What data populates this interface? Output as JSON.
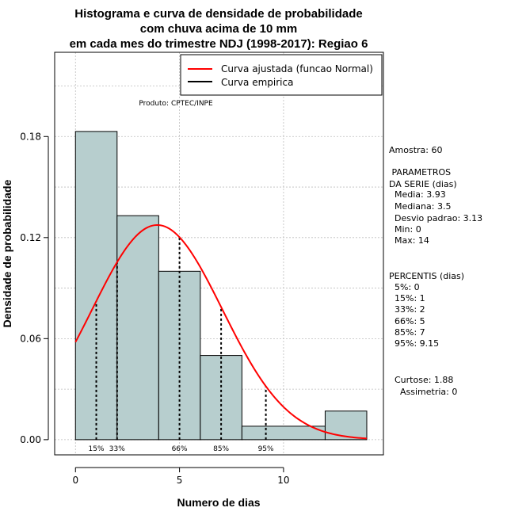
{
  "chart_data": {
    "type": "bar",
    "title_lines": [
      "Histograma e curva de densidade de probabilidade",
      "com chuva acima de 10 mm",
      "em cada mes do trimestre NDJ (1998-2017): Regiao 6"
    ],
    "xlabel": "Numero de dias",
    "ylabel": "Densidade de probabilidade",
    "xlim": [
      -1,
      14.8
    ],
    "ylim": [
      -0.009,
      0.23
    ],
    "x_ticks": [
      "0",
      "5",
      "10"
    ],
    "x_tick_values": [
      0,
      5,
      10
    ],
    "y_ticks": [
      "0.00",
      "0.06",
      "0.12",
      "0.18"
    ],
    "y_tick_values": [
      0.0,
      0.06,
      0.12,
      0.18
    ],
    "grid": true,
    "bins": [
      {
        "start": 0,
        "end": 2,
        "density": 0.183
      },
      {
        "start": 2,
        "end": 4,
        "density": 0.133
      },
      {
        "start": 4,
        "end": 6,
        "density": 0.1
      },
      {
        "start": 6,
        "end": 8,
        "density": 0.05
      },
      {
        "start": 8,
        "end": 12,
        "density": 0.008
      },
      {
        "start": 12,
        "end": 14,
        "density": 0.017
      }
    ],
    "normal_fit": {
      "mean": 3.93,
      "sd": 3.13
    },
    "percentiles": [
      {
        "label": "15%",
        "x": 1
      },
      {
        "label": "33%",
        "x": 2
      },
      {
        "label": "66%",
        "x": 5
      },
      {
        "label": "85%",
        "x": 7
      },
      {
        "label": "95%",
        "x": 9.15
      }
    ],
    "legend": {
      "position": "top-right",
      "entries": [
        {
          "label": "Curva ajustada (funcao Normal)",
          "color": "#ff0000"
        },
        {
          "label": "Curva empirica",
          "color": "#000000"
        }
      ]
    },
    "annotation": "Produto: CPTEC/INPE",
    "stats_panel": [
      "Amostra: 60",
      " PARAMETROS",
      "DA SERIE (dias)",
      "  Media: 3.93",
      "  Mediana: 3.5",
      "  Desvio padrao: 3.13",
      "  Min: 0",
      "  Max: 14",
      "PERCENTIS (dias)",
      "  5%: 0",
      "  15%: 1",
      "  33%: 2",
      "  66%: 5",
      "  85%: 7",
      "  95%: 9.15",
      "Curtose: 1.88",
      "  Assimetria: 0"
    ],
    "colors": {
      "bar_fill": "#b7cece",
      "bar_stroke": "#000000",
      "fit_curve": "#ff0000",
      "percentile_line": "#000000",
      "grid": "#bdbdbd"
    }
  }
}
